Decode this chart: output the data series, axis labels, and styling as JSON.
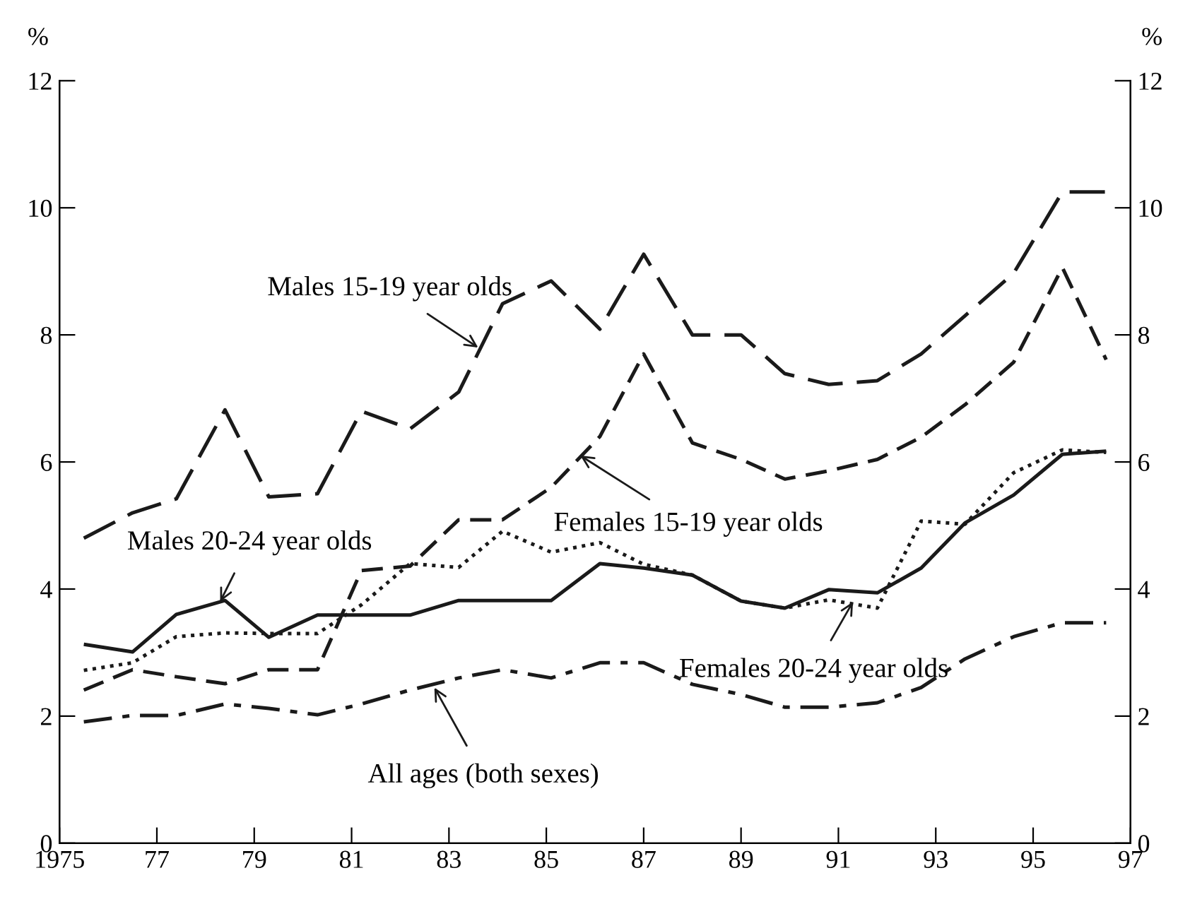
{
  "chart_data": {
    "type": "line",
    "ylabel": "%",
    "y2label": "%",
    "x": [
      1975.5,
      1976.5,
      1977.4,
      1978.4,
      1979.3,
      1980.3,
      1981.2,
      1982.2,
      1983.2,
      1984.1,
      1985.1,
      1986.1,
      1987.0,
      1988.0,
      1989.0,
      1989.9,
      1990.8,
      1991.8,
      1992.7,
      1993.6,
      1994.6,
      1995.6,
      1996.5
    ],
    "series": [
      {
        "color": "#1a1a1a",
        "line_style": "longdash",
        "values": [
          4.8,
          5.2,
          5.42,
          6.82,
          5.45,
          5.5,
          6.8,
          6.52,
          7.1,
          8.49,
          8.85,
          8.09,
          9.27,
          8.0,
          8.0,
          7.39,
          7.22,
          7.28,
          7.7,
          8.3,
          8.97,
          10.25,
          10.25
        ]
      },
      {
        "color": "#1a1a1a",
        "line_style": "dashed",
        "values": [
          2.41,
          2.73,
          2.62,
          2.51,
          2.73,
          2.73,
          4.29,
          4.36,
          5.09,
          5.09,
          5.6,
          6.4,
          7.7,
          6.3,
          6.04,
          5.73,
          5.86,
          6.04,
          6.39,
          6.9,
          7.57,
          9.06,
          7.61
        ]
      },
      {
        "color": "#1a1a1a",
        "line_style": "solid",
        "values": [
          3.13,
          3.01,
          3.6,
          3.82,
          3.24,
          3.59,
          3.59,
          3.59,
          3.82,
          3.82,
          3.82,
          4.4,
          4.33,
          4.22,
          3.81,
          3.7,
          3.99,
          3.94,
          4.33,
          5.04,
          5.48,
          6.12,
          6.17
        ]
      },
      {
        "color": "#1a1a1a",
        "line_style": "dotted",
        "values": [
          2.72,
          2.84,
          3.25,
          3.31,
          3.3,
          3.3,
          3.75,
          4.4,
          4.34,
          4.91,
          4.58,
          4.73,
          4.39,
          4.22,
          3.81,
          3.7,
          3.83,
          3.7,
          5.07,
          5.02,
          5.83,
          6.19,
          6.15
        ]
      },
      {
        "color": "#1a1a1a",
        "line_style": "dashdot",
        "values": [
          1.91,
          2.01,
          2.01,
          2.19,
          2.12,
          2.02,
          2.19,
          2.41,
          2.6,
          2.73,
          2.6,
          2.84,
          2.84,
          2.5,
          2.34,
          2.14,
          2.14,
          2.21,
          2.45,
          2.9,
          3.25,
          3.47,
          3.47
        ]
      }
    ],
    "annotations": [
      {
        "text": "Males 15-19 year olds",
        "x": 1983.6,
        "y": 7.8
      },
      {
        "text": "Females 15-19 year olds",
        "x": 1985.7,
        "y": 6.1
      },
      {
        "text": "Males 20-24 year olds",
        "x": 1978.3,
        "y": 3.8
      },
      {
        "text": "Females 20-24 year olds",
        "x": 1991.3,
        "y": 3.8
      },
      {
        "text": "All ages (both sexes)",
        "x": 1982.7,
        "y": 2.45
      }
    ],
    "xlim": [
      1975,
      1997
    ],
    "xticks": [
      1975,
      {
        "value": 1977,
        "label": "77"
      },
      {
        "value": 1979,
        "label": "79"
      },
      {
        "value": 1981,
        "label": "81"
      },
      {
        "value": 1983,
        "label": "83"
      },
      {
        "value": 1985,
        "label": "85"
      },
      {
        "value": 1987,
        "label": "87"
      },
      {
        "value": 1989,
        "label": "89"
      },
      {
        "value": 1991,
        "label": "91"
      },
      {
        "value": 1993,
        "label": "93"
      },
      {
        "value": 1995,
        "label": "95"
      },
      {
        "value": 1997,
        "label": "97"
      }
    ],
    "ylim": [
      0,
      12
    ],
    "yticks": [
      0,
      2,
      4,
      6,
      8,
      10,
      12
    ],
    "y2lim": [
      0,
      12
    ],
    "y2ticks": [
      0,
      2,
      4,
      6,
      8,
      10,
      12
    ],
    "grid": false,
    "legend": false,
    "marker": "none"
  }
}
